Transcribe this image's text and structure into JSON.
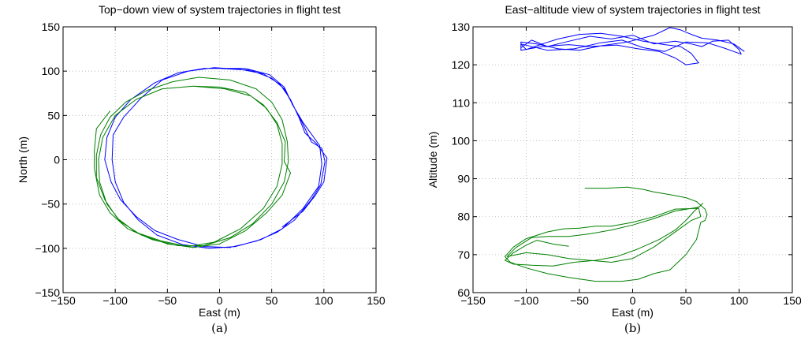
{
  "chart_data": [
    {
      "type": "line",
      "title": "Top−down view of system trajectories in flight test",
      "xlabel": "East (m)",
      "ylabel": "North (m)",
      "caption": "(a)",
      "xlim": [
        -150,
        150
      ],
      "ylim": [
        -150,
        150
      ],
      "xticks": [
        -150,
        -100,
        -50,
        0,
        50,
        100,
        150
      ],
      "yticks": [
        -150,
        -100,
        -50,
        0,
        50,
        100,
        150
      ],
      "xtick_labels": [
        "−150",
        "−100",
        "−50",
        "0",
        "50",
        "100",
        "150"
      ],
      "ytick_labels": [
        "−150",
        "−100",
        "−50",
        "0",
        "50",
        "100",
        "150"
      ],
      "grid": true,
      "series": [
        {
          "color": "#0000ff",
          "points": [
            [
              0,
              103
            ],
            [
              30,
              101
            ],
            [
              50,
              92
            ],
            [
              62,
              80
            ],
            [
              72,
              58
            ],
            [
              80,
              40
            ],
            [
              88,
              20
            ],
            [
              98,
              13
            ],
            [
              101,
              -2
            ],
            [
              97,
              -28
            ],
            [
              88,
              -45
            ],
            [
              72,
              -68
            ],
            [
              55,
              -82
            ],
            [
              35,
              -92
            ],
            [
              10,
              -99
            ],
            [
              -15,
              -98
            ],
            [
              -40,
              -90
            ],
            [
              -62,
              -80
            ],
            [
              -80,
              -64
            ],
            [
              -95,
              -45
            ],
            [
              -104,
              -25
            ],
            [
              -110,
              0
            ],
            [
              -108,
              25
            ],
            [
              -100,
              48
            ],
            [
              -85,
              68
            ],
            [
              -62,
              87
            ],
            [
              -40,
              98
            ],
            [
              -15,
              103
            ],
            [
              0,
              103
            ],
            [
              25,
              103
            ],
            [
              48,
              96
            ],
            [
              62,
              82
            ],
            [
              70,
              62
            ],
            [
              80,
              42
            ],
            [
              96,
              16
            ],
            [
              98,
              -5
            ],
            [
              95,
              -30
            ],
            [
              80,
              -55
            ],
            [
              60,
              -78
            ],
            [
              40,
              -90
            ],
            [
              15,
              -98
            ],
            [
              -10,
              -100
            ],
            [
              -35,
              -96
            ],
            [
              -60,
              -85
            ],
            [
              -78,
              -68
            ],
            [
              -92,
              -48
            ],
            [
              -100,
              -25
            ],
            [
              -103,
              0
            ],
            [
              -102,
              28
            ],
            [
              -92,
              48
            ],
            [
              -75,
              70
            ],
            [
              -55,
              90
            ],
            [
              -30,
              100
            ],
            [
              -5,
              104
            ],
            [
              20,
              102
            ],
            [
              42,
              97
            ],
            [
              58,
              85
            ],
            [
              68,
              68
            ],
            [
              76,
              48
            ],
            [
              82,
              30
            ],
            [
              93,
              18
            ],
            [
              103,
              2
            ],
            [
              100,
              -25
            ],
            [
              92,
              -40
            ],
            [
              80,
              -58
            ],
            [
              60,
              -76
            ]
          ]
        },
        {
          "color": "#008000",
          "points": [
            [
              -25,
              83
            ],
            [
              0,
              82
            ],
            [
              25,
              76
            ],
            [
              42,
              62
            ],
            [
              55,
              42
            ],
            [
              63,
              20
            ],
            [
              62,
              -2
            ],
            [
              68,
              -15
            ],
            [
              60,
              -40
            ],
            [
              45,
              -60
            ],
            [
              25,
              -80
            ],
            [
              0,
              -95
            ],
            [
              -25,
              -99
            ],
            [
              -50,
              -95
            ],
            [
              -75,
              -85
            ],
            [
              -95,
              -70
            ],
            [
              -108,
              -50
            ],
            [
              -115,
              -25
            ],
            [
              -116,
              0
            ],
            [
              -112,
              25
            ],
            [
              -100,
              50
            ],
            [
              -80,
              68
            ],
            [
              -55,
              80
            ],
            [
              -25,
              83
            ],
            [
              5,
              80
            ],
            [
              30,
              72
            ],
            [
              45,
              58
            ],
            [
              55,
              40
            ],
            [
              60,
              18
            ],
            [
              60,
              -5
            ],
            [
              55,
              -30
            ],
            [
              42,
              -55
            ],
            [
              20,
              -78
            ],
            [
              -5,
              -93
            ],
            [
              -30,
              -98
            ],
            [
              -55,
              -92
            ],
            [
              -80,
              -82
            ],
            [
              -98,
              -66
            ],
            [
              -110,
              -45
            ],
            [
              -118,
              -20
            ],
            [
              -118,
              5
            ],
            [
              -114,
              28
            ],
            [
              -105,
              48
            ],
            [
              -90,
              65
            ],
            [
              -70,
              78
            ],
            [
              -45,
              88
            ],
            [
              -20,
              93
            ],
            [
              10,
              90
            ],
            [
              35,
              80
            ],
            [
              50,
              65
            ],
            [
              60,
              45
            ],
            [
              65,
              20
            ],
            [
              66,
              -2
            ],
            [
              62,
              -25
            ],
            [
              50,
              -50
            ],
            [
              32,
              -72
            ],
            [
              10,
              -88
            ],
            [
              -15,
              -97
            ],
            [
              -40,
              -97
            ],
            [
              -65,
              -90
            ],
            [
              -88,
              -78
            ],
            [
              -105,
              -60
            ],
            [
              -115,
              -40
            ],
            [
              -120,
              -10
            ],
            [
              -120,
              10
            ],
            [
              -118,
              35
            ],
            [
              -105,
              55
            ]
          ]
        }
      ]
    },
    {
      "type": "line",
      "title": "East−altitude view of system trajectories in flight test",
      "xlabel": "East (m)",
      "ylabel": "Altitude (m)",
      "caption": "(b)",
      "xlim": [
        -150,
        150
      ],
      "ylim": [
        60,
        130
      ],
      "xticks": [
        -150,
        -100,
        -50,
        0,
        50,
        100,
        150
      ],
      "yticks": [
        60,
        70,
        80,
        90,
        100,
        110,
        120,
        130
      ],
      "xtick_labels": [
        "−150",
        "−100",
        "−50",
        "0",
        "50",
        "100",
        "150"
      ],
      "ytick_labels": [
        "60",
        "70",
        "80",
        "90",
        "100",
        "110",
        "120",
        "130"
      ],
      "grid": true,
      "series": [
        {
          "color": "#0000ff",
          "points": [
            [
              -105,
              124.5
            ],
            [
              -95,
              126.5
            ],
            [
              -80,
              124.8
            ],
            [
              -60,
              126.2
            ],
            [
              -40,
              127.5
            ],
            [
              -20,
              126.8
            ],
            [
              0,
              127.8
            ],
            [
              20,
              125.5
            ],
            [
              40,
              126.2
            ],
            [
              55,
              125.5
            ],
            [
              65,
              124.8
            ],
            [
              75,
              126.2
            ],
            [
              90,
              126.5
            ],
            [
              100,
              124
            ],
            [
              102,
              122.8
            ],
            [
              95,
              123.5
            ],
            [
              85,
              124.5
            ],
            [
              70,
              125.8
            ],
            [
              50,
              126
            ],
            [
              30,
              123.5
            ],
            [
              10,
              124.5
            ],
            [
              -10,
              126.5
            ],
            [
              -30,
              125.8
            ],
            [
              -55,
              124.2
            ],
            [
              -80,
              123.8
            ],
            [
              -105,
              125.5
            ],
            [
              -100,
              124
            ],
            [
              -85,
              125.5
            ],
            [
              -70,
              126.8
            ],
            [
              -50,
              128
            ],
            [
              -30,
              128.3
            ],
            [
              -10,
              127.5
            ],
            [
              10,
              126.2
            ],
            [
              30,
              125.3
            ],
            [
              45,
              124.8
            ],
            [
              55,
              123
            ],
            [
              62,
              120.5
            ],
            [
              50,
              120
            ],
            [
              40,
              121.8
            ],
            [
              25,
              123.5
            ],
            [
              5,
              124.2
            ],
            [
              -15,
              125.2
            ],
            [
              -40,
              124.8
            ],
            [
              -60,
              125.3
            ],
            [
              -85,
              124.8
            ],
            [
              -105,
              123.8
            ],
            [
              -105,
              126
            ],
            [
              -90,
              125.5
            ],
            [
              -70,
              124.2
            ],
            [
              -50,
              123.8
            ],
            [
              -30,
              125
            ],
            [
              -5,
              126
            ],
            [
              20,
              127.8
            ],
            [
              35,
              129.8
            ],
            [
              45,
              129.2
            ],
            [
              55,
              128
            ],
            [
              65,
              127
            ],
            [
              80,
              126.5
            ],
            [
              95,
              125.5
            ],
            [
              105,
              123.5
            ]
          ]
        },
        {
          "color": "#008000",
          "points": [
            [
              -45,
              87.5
            ],
            [
              -25,
              87.5
            ],
            [
              -5,
              87.8
            ],
            [
              10,
              87.2
            ],
            [
              20,
              86.5
            ],
            [
              35,
              85.8
            ],
            [
              50,
              85
            ],
            [
              60,
              84
            ],
            [
              68,
              82
            ],
            [
              70,
              80.5
            ],
            [
              68,
              79
            ],
            [
              64,
              78.5
            ],
            [
              60,
              74
            ],
            [
              50,
              70
            ],
            [
              35,
              66
            ],
            [
              20,
              65
            ],
            [
              5,
              63.5
            ],
            [
              -10,
              63
            ],
            [
              -35,
              63
            ],
            [
              -60,
              64
            ],
            [
              -80,
              65
            ],
            [
              -100,
              66.5
            ],
            [
              -115,
              68
            ],
            [
              -120,
              69.5
            ],
            [
              -112,
              72
            ],
            [
              -100,
              74.2
            ],
            [
              -80,
              76
            ],
            [
              -65,
              76.8
            ],
            [
              -50,
              77
            ],
            [
              -35,
              77.5
            ],
            [
              -20,
              77.5
            ],
            [
              0,
              78.5
            ],
            [
              20,
              80
            ],
            [
              40,
              82
            ],
            [
              62,
              82.2
            ],
            [
              64,
              80
            ],
            [
              55,
              79
            ],
            [
              45,
              77
            ],
            [
              35,
              75
            ],
            [
              20,
              72
            ],
            [
              0,
              69
            ],
            [
              -20,
              68
            ],
            [
              -40,
              68.5
            ],
            [
              -60,
              69
            ],
            [
              -80,
              70
            ],
            [
              -100,
              70.5
            ],
            [
              -118,
              69.5
            ],
            [
              -110,
              71.8
            ],
            [
              -95,
              74.5
            ],
            [
              -80,
              74.8
            ],
            [
              -60,
              74.8
            ],
            [
              -40,
              75.5
            ],
            [
              -20,
              76.5
            ],
            [
              0,
              77.8
            ],
            [
              20,
              79.5
            ],
            [
              40,
              81.5
            ],
            [
              62,
              82.5
            ],
            [
              66,
              83.5
            ],
            [
              58,
              81.5
            ],
            [
              50,
              79
            ],
            [
              40,
              76.5
            ],
            [
              25,
              74
            ],
            [
              5,
              71.5
            ],
            [
              -15,
              69.5
            ],
            [
              -35,
              68.5
            ],
            [
              -55,
              68
            ],
            [
              -75,
              67
            ],
            [
              -95,
              67.2
            ],
            [
              -112,
              67.5
            ],
            [
              -120,
              68.5
            ],
            [
              -112,
              70.5
            ],
            [
              -100,
              72.5
            ],
            [
              -90,
              73.8
            ],
            [
              -75,
              72.8
            ],
            [
              -60,
              72.2
            ]
          ]
        }
      ]
    }
  ]
}
